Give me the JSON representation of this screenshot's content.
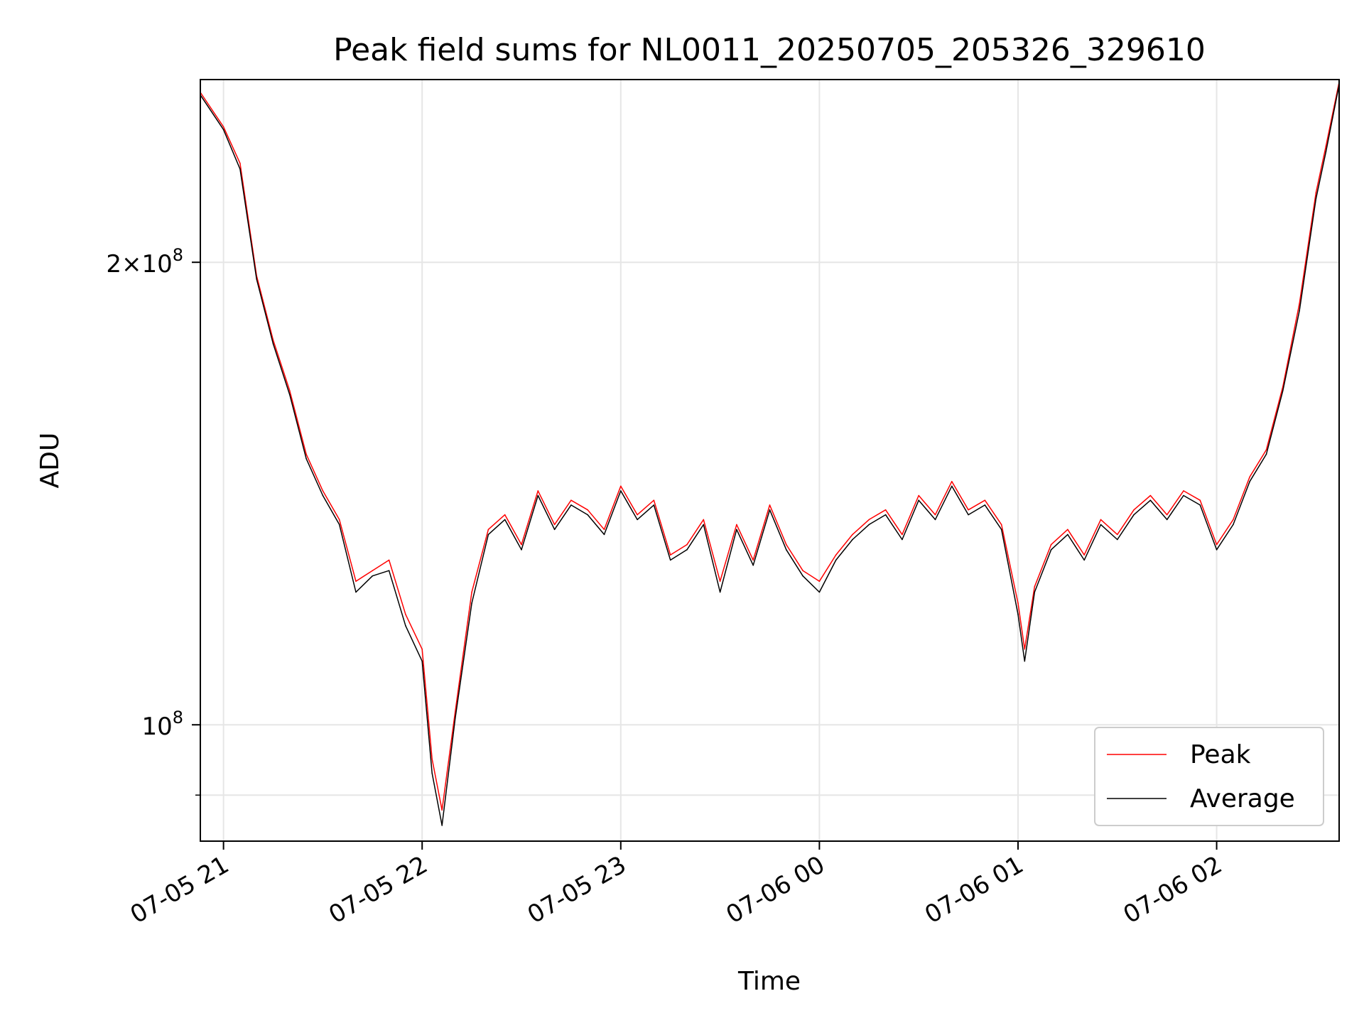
{
  "chart_data": {
    "type": "line",
    "title": "Peak field sums for NL0011_20250705_205326_329610",
    "xlabel": "Time",
    "ylabel": "ADU",
    "yscale": "log",
    "grid": true,
    "legend_position": "lower-right",
    "xlim": [
      "2025-07-05 20:53",
      "2025-07-06 02:37"
    ],
    "ylim": [
      84000000,
      263000000
    ],
    "x_ticks": [
      {
        "value": "2025-07-05 21:00",
        "label": "07-05 21"
      },
      {
        "value": "2025-07-05 22:00",
        "label": "07-05 22"
      },
      {
        "value": "2025-07-05 23:00",
        "label": "07-05 23"
      },
      {
        "value": "2025-07-06 00:00",
        "label": "07-06 00"
      },
      {
        "value": "2025-07-06 01:00",
        "label": "07-06 01"
      },
      {
        "value": "2025-07-06 02:00",
        "label": "07-06 02"
      }
    ],
    "y_ticks": [
      {
        "value": 100000000,
        "mantissa": "",
        "exponent": "8"
      },
      {
        "value": 200000000,
        "mantissa": "2",
        "exponent": "8"
      }
    ],
    "x": [
      "2025-07-05 20:53",
      "2025-07-05 21:00",
      "2025-07-05 21:05",
      "2025-07-05 21:10",
      "2025-07-05 21:15",
      "2025-07-05 21:20",
      "2025-07-05 21:25",
      "2025-07-05 21:30",
      "2025-07-05 21:35",
      "2025-07-05 21:40",
      "2025-07-05 21:45",
      "2025-07-05 21:50",
      "2025-07-05 21:55",
      "2025-07-05 22:00",
      "2025-07-05 22:03",
      "2025-07-05 22:06",
      "2025-07-05 22:10",
      "2025-07-05 22:15",
      "2025-07-05 22:20",
      "2025-07-05 22:25",
      "2025-07-05 22:30",
      "2025-07-05 22:35",
      "2025-07-05 22:40",
      "2025-07-05 22:45",
      "2025-07-05 22:50",
      "2025-07-05 22:55",
      "2025-07-05 23:00",
      "2025-07-05 23:05",
      "2025-07-05 23:10",
      "2025-07-05 23:15",
      "2025-07-05 23:20",
      "2025-07-05 23:25",
      "2025-07-05 23:30",
      "2025-07-05 23:35",
      "2025-07-05 23:40",
      "2025-07-05 23:45",
      "2025-07-05 23:50",
      "2025-07-05 23:55",
      "2025-07-06 00:00",
      "2025-07-06 00:05",
      "2025-07-06 00:10",
      "2025-07-06 00:15",
      "2025-07-06 00:20",
      "2025-07-06 00:25",
      "2025-07-06 00:30",
      "2025-07-06 00:35",
      "2025-07-06 00:40",
      "2025-07-06 00:45",
      "2025-07-06 00:50",
      "2025-07-06 00:55",
      "2025-07-06 01:00",
      "2025-07-06 01:02",
      "2025-07-06 01:05",
      "2025-07-06 01:10",
      "2025-07-06 01:15",
      "2025-07-06 01:20",
      "2025-07-06 01:25",
      "2025-07-06 01:30",
      "2025-07-06 01:35",
      "2025-07-06 01:40",
      "2025-07-06 01:45",
      "2025-07-06 01:50",
      "2025-07-06 01:55",
      "2025-07-06 02:00",
      "2025-07-06 02:05",
      "2025-07-06 02:10",
      "2025-07-06 02:15",
      "2025-07-06 02:20",
      "2025-07-06 02:25",
      "2025-07-06 02:30",
      "2025-07-06 02:33",
      "2025-07-06 02:37"
    ],
    "series": [
      {
        "name": "Peak",
        "color": "#ff0000",
        "values": [
          258000000,
          245000000,
          232000000,
          196000000,
          178000000,
          165000000,
          150000000,
          142000000,
          136000000,
          124000000,
          126000000,
          128000000,
          118000000,
          112000000,
          95000000,
          88000000,
          102000000,
          122000000,
          134000000,
          137000000,
          131000000,
          142000000,
          135000000,
          140000000,
          138000000,
          134000000,
          143000000,
          137000000,
          140000000,
          129000000,
          131000000,
          136000000,
          124000000,
          135000000,
          128000000,
          139000000,
          131000000,
          126000000,
          124000000,
          129000000,
          133000000,
          136000000,
          138000000,
          133000000,
          141000000,
          137000000,
          144000000,
          138000000,
          140000000,
          135000000,
          120000000,
          112000000,
          123000000,
          131000000,
          134000000,
          129000000,
          136000000,
          133000000,
          138000000,
          141000000,
          137000000,
          142000000,
          140000000,
          131000000,
          136000000,
          145000000,
          151000000,
          166000000,
          188000000,
          222000000,
          238000000,
          262000000
        ]
      },
      {
        "name": "Average",
        "color": "#000000",
        "values": [
          257000000,
          244000000,
          230000000,
          195000000,
          177000000,
          164000000,
          149000000,
          141000000,
          135000000,
          122000000,
          125000000,
          126000000,
          116000000,
          110000000,
          93000000,
          86000000,
          101000000,
          120000000,
          133000000,
          136000000,
          130000000,
          141000000,
          134000000,
          139000000,
          137000000,
          133000000,
          142000000,
          136000000,
          139000000,
          128000000,
          130000000,
          135000000,
          122000000,
          134000000,
          127000000,
          138000000,
          130000000,
          125000000,
          122000000,
          128000000,
          132000000,
          135000000,
          137000000,
          132000000,
          140000000,
          136000000,
          143000000,
          137000000,
          139000000,
          134000000,
          118000000,
          110000000,
          122000000,
          130000000,
          133000000,
          128000000,
          135000000,
          132000000,
          137000000,
          140000000,
          136000000,
          141000000,
          139000000,
          130000000,
          135000000,
          144000000,
          150000000,
          165000000,
          186000000,
          220000000,
          236000000,
          261000000
        ]
      }
    ],
    "legend": [
      "Peak",
      "Average"
    ]
  }
}
